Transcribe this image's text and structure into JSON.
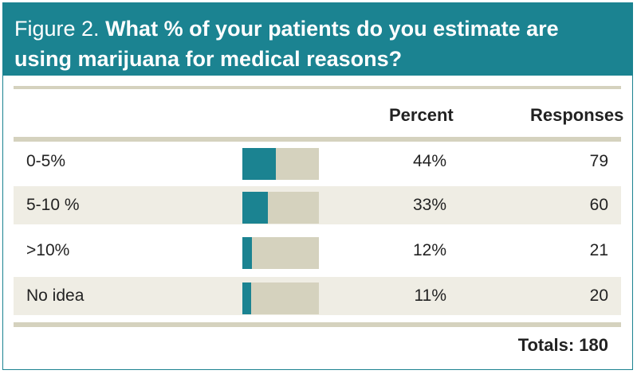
{
  "header": {
    "figure_label": "Figure 2.",
    "question": "What % of your patients do you estimate are using marijuana for medical reasons?"
  },
  "table": {
    "col_percent": "Percent",
    "col_responses": "Responses",
    "totals_label": "Totals: 180"
  },
  "colors": {
    "accent": "#1b8391",
    "track": "#d5d2be",
    "row_shade": "#efede4"
  },
  "chart_data": {
    "type": "bar",
    "categories": [
      "0-5%",
      "5-10 %",
      ">10%",
      "No idea"
    ],
    "values": [
      44,
      33,
      12,
      11
    ],
    "percent_labels": [
      "44%",
      "33%",
      "12%",
      "11%"
    ],
    "responses": [
      "79",
      "60",
      "21",
      "20"
    ],
    "ylim": [
      0,
      100
    ]
  }
}
